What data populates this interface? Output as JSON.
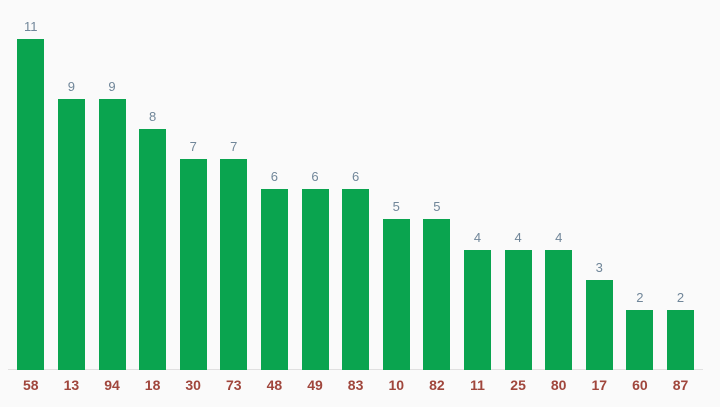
{
  "chart_data": {
    "type": "bar",
    "title": "",
    "xlabel": "",
    "ylabel": "",
    "categories": [
      "58",
      "13",
      "94",
      "18",
      "30",
      "73",
      "48",
      "49",
      "83",
      "10",
      "82",
      "11",
      "25",
      "80",
      "17",
      "60",
      "87"
    ],
    "values": [
      11,
      9,
      9,
      8,
      7,
      7,
      6,
      6,
      6,
      5,
      5,
      4,
      4,
      4,
      3,
      2,
      2
    ],
    "ylim": [
      0,
      11
    ],
    "grid": false,
    "legend": "none",
    "annotations_shown": true,
    "bar_color": "#0aa44f",
    "annotation_color": "#708699",
    "category_label_color": "#a0463c",
    "axis_line_color": "#e0e0e0",
    "background_color": "#fafafa"
  }
}
